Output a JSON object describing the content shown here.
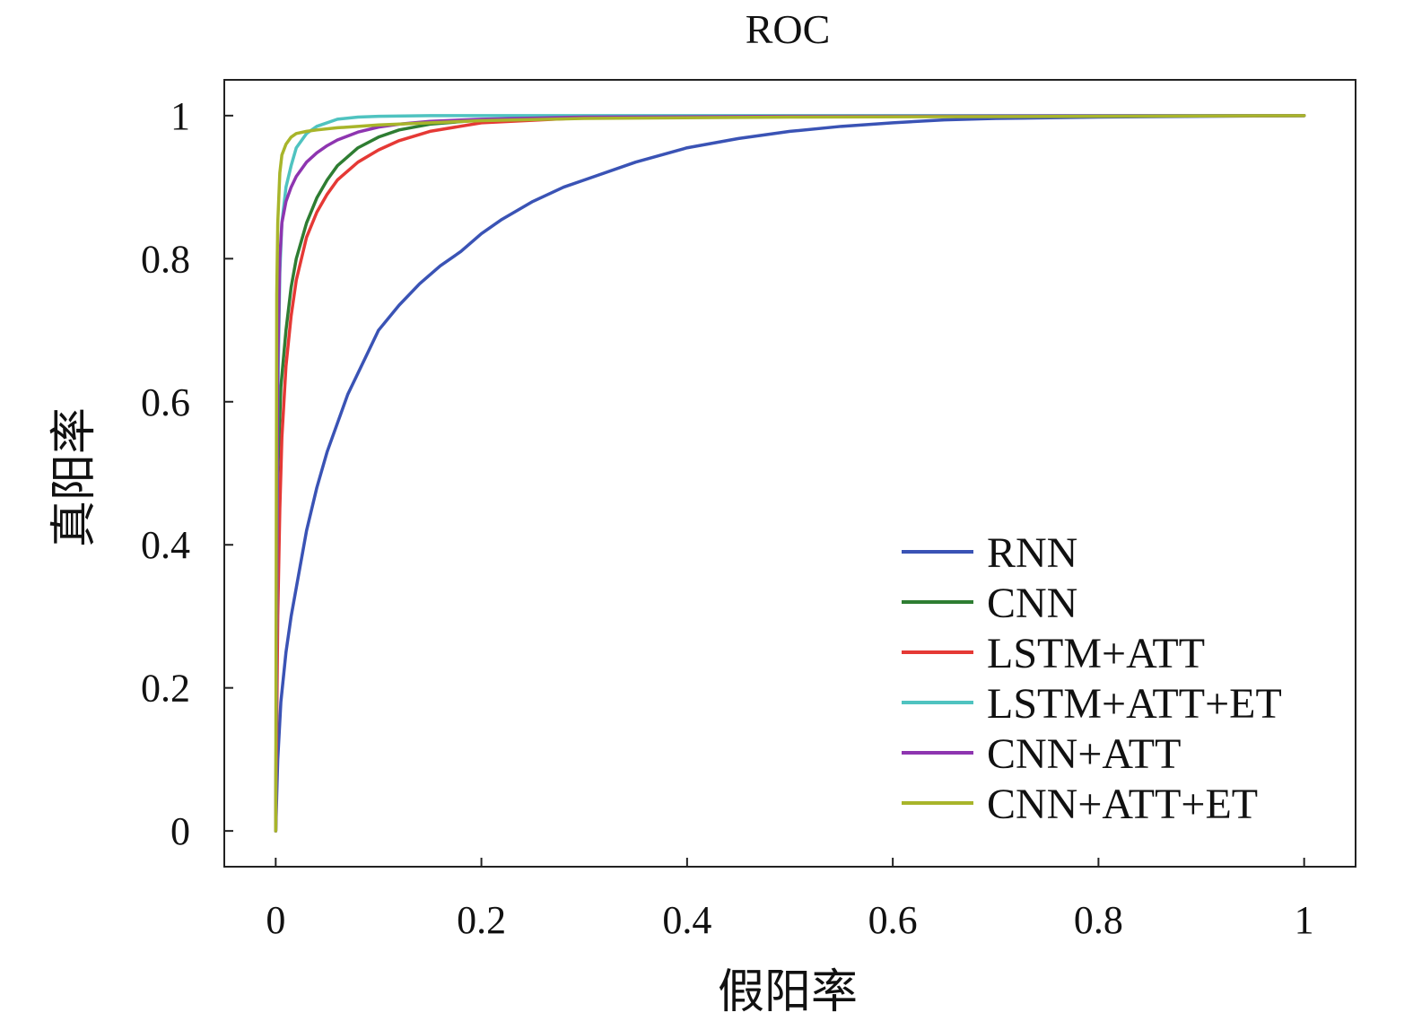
{
  "chart_data": {
    "type": "line",
    "title": "ROC",
    "xlabel": "假阳率",
    "ylabel": "真阳率",
    "xlim": [
      -0.05,
      1.05
    ],
    "ylim": [
      -0.05,
      1.05
    ],
    "xticks": [
      0,
      0.2,
      0.4,
      0.6,
      0.8,
      1
    ],
    "yticks": [
      0,
      0.2,
      0.4,
      0.6,
      0.8,
      1
    ],
    "xtick_labels": [
      "0",
      "0.2",
      "0.4",
      "0.6",
      "0.8",
      "1"
    ],
    "ytick_labels": [
      "0",
      "0.2",
      "0.4",
      "0.6",
      "0.8",
      "1"
    ],
    "grid": false,
    "legend_position": "bottom-right",
    "series": [
      {
        "name": "RNN",
        "color": "#3a53b5",
        "x": [
          0,
          0.002,
          0.005,
          0.01,
          0.015,
          0.02,
          0.03,
          0.04,
          0.05,
          0.06,
          0.07,
          0.08,
          0.1,
          0.12,
          0.14,
          0.16,
          0.18,
          0.2,
          0.22,
          0.25,
          0.28,
          0.3,
          0.35,
          0.4,
          0.45,
          0.5,
          0.55,
          0.6,
          0.65,
          0.7,
          0.8,
          0.9,
          1
        ],
        "y": [
          0,
          0.1,
          0.18,
          0.25,
          0.3,
          0.34,
          0.42,
          0.48,
          0.53,
          0.57,
          0.61,
          0.64,
          0.7,
          0.735,
          0.765,
          0.79,
          0.81,
          0.835,
          0.855,
          0.88,
          0.9,
          0.91,
          0.935,
          0.955,
          0.968,
          0.978,
          0.985,
          0.99,
          0.994,
          0.996,
          0.998,
          0.999,
          1
        ]
      },
      {
        "name": "CNN",
        "color": "#2e7d32",
        "x": [
          0,
          0.002,
          0.005,
          0.01,
          0.015,
          0.02,
          0.03,
          0.04,
          0.05,
          0.06,
          0.08,
          0.1,
          0.12,
          0.15,
          0.2,
          0.3,
          0.5,
          1
        ],
        "y": [
          0,
          0.5,
          0.62,
          0.7,
          0.76,
          0.8,
          0.85,
          0.885,
          0.91,
          0.93,
          0.955,
          0.97,
          0.98,
          0.988,
          0.994,
          0.998,
          0.999,
          1
        ]
      },
      {
        "name": "LSTM+ATT",
        "color": "#e53935",
        "x": [
          0,
          0.002,
          0.004,
          0.006,
          0.01,
          0.015,
          0.02,
          0.03,
          0.04,
          0.05,
          0.06,
          0.08,
          0.1,
          0.12,
          0.15,
          0.2,
          0.3,
          0.5,
          1
        ],
        "y": [
          0,
          0.3,
          0.45,
          0.55,
          0.65,
          0.72,
          0.77,
          0.83,
          0.865,
          0.89,
          0.91,
          0.935,
          0.952,
          0.965,
          0.978,
          0.99,
          0.997,
          0.999,
          1
        ]
      },
      {
        "name": "LSTM+ATT+ET",
        "color": "#4fc3c0",
        "x": [
          0,
          0.002,
          0.004,
          0.006,
          0.01,
          0.015,
          0.02,
          0.03,
          0.04,
          0.06,
          0.08,
          0.1,
          0.15,
          0.2,
          0.4,
          1
        ],
        "y": [
          0,
          0.6,
          0.78,
          0.85,
          0.9,
          0.93,
          0.955,
          0.975,
          0.985,
          0.995,
          0.998,
          0.999,
          1,
          1,
          1,
          1
        ]
      },
      {
        "name": "CNN+ATT",
        "color": "#8e35b0",
        "x": [
          0,
          0.002,
          0.004,
          0.006,
          0.01,
          0.015,
          0.02,
          0.03,
          0.04,
          0.05,
          0.06,
          0.08,
          0.1,
          0.12,
          0.15,
          0.2,
          0.3,
          0.5,
          1
        ],
        "y": [
          0,
          0.65,
          0.8,
          0.85,
          0.88,
          0.9,
          0.915,
          0.935,
          0.948,
          0.958,
          0.966,
          0.977,
          0.984,
          0.988,
          0.992,
          0.995,
          0.998,
          0.999,
          1
        ]
      },
      {
        "name": "CNN+ATT+ET",
        "color": "#a8b52a",
        "x": [
          0,
          0.001,
          0.002,
          0.004,
          0.006,
          0.01,
          0.015,
          0.02,
          0.03,
          0.04,
          0.06,
          0.1,
          0.15,
          0.2,
          0.3,
          0.5,
          0.8,
          1
        ],
        "y": [
          0,
          0.75,
          0.85,
          0.92,
          0.945,
          0.96,
          0.97,
          0.975,
          0.978,
          0.98,
          0.983,
          0.987,
          0.99,
          0.993,
          0.996,
          0.998,
          0.999,
          1
        ]
      }
    ]
  }
}
